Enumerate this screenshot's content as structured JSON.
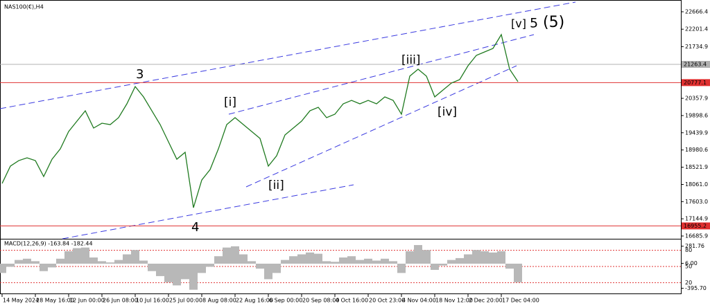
{
  "chart_data": {
    "type": "line",
    "title": "NAS100(€),H4",
    "categories": [
      "14 May 2024",
      null,
      null,
      null,
      "28 May 16:00",
      null,
      null,
      null,
      "12 Jun 00:00",
      null,
      null,
      null,
      "26 Jun 08:00",
      null,
      null,
      null,
      "10 Jul 16:00",
      null,
      null,
      null,
      "25 Jul 00:00",
      null,
      null,
      null,
      "8 Aug 08:00",
      null,
      null,
      null,
      "22 Aug 16:00",
      null,
      null,
      null,
      "6 Sep 00:00",
      null,
      null,
      null,
      "20 Sep 08:00",
      null,
      null,
      null,
      "4 Oct 16:00",
      null,
      null,
      null,
      "20 Oct 23:00",
      null,
      null,
      null,
      "4 Nov 04:00",
      null,
      null,
      null,
      "18 Nov 12:00",
      null,
      null,
      null,
      "2 Dec 20:00",
      null,
      null,
      null,
      "17 Dec 04:00",
      null,
      null
    ],
    "series": [
      {
        "name": "NAS100",
        "color": "#1f7a1f",
        "values": [
          18088,
          18550,
          18697,
          18771,
          18697,
          18273,
          18734,
          19011,
          19473,
          19750,
          20026,
          19565,
          19694,
          19657,
          19842,
          20211,
          20672,
          20396,
          20026,
          19657,
          19196,
          18734,
          18919,
          17442,
          18180,
          18457,
          19011,
          19657,
          19842,
          19657,
          19473,
          19288,
          18550,
          18827,
          19380,
          19565,
          19750,
          20026,
          20119,
          19842,
          19934,
          20211,
          20303,
          20211,
          20303,
          20211,
          20396,
          20303,
          19934,
          20949,
          21134,
          20949,
          20396,
          20580,
          20765,
          20857,
          21226,
          21503,
          21596,
          21688,
          22057,
          21134,
          20802
        ]
      }
    ],
    "ylim": [
      16612,
      22980
    ],
    "yticks": [
      22666.4,
      22201.4,
      21734.9,
      20357.9,
      19898.6,
      19439.9,
      18980.6,
      18521.9,
      {
        "value": 18061,
        "label": "18061.0"
      },
      {
        "value": 17603,
        "label": "17603.0"
      },
      17144.9,
      16685.9
    ],
    "price_levels": [
      {
        "value": 21263.4,
        "color": "#b0b0b0"
      },
      {
        "value": 20777.1,
        "color": "#e03030"
      },
      {
        "value": 16955.2,
        "color": "#e03030"
      }
    ],
    "annotations": [
      {
        "text": "3",
        "color": "#1c1cc8"
      },
      {
        "text": "4",
        "color": "#1c1cc8"
      },
      {
        "text": "[i]",
        "color": "#2e8b2e"
      },
      {
        "text": "[ii]",
        "color": "#2e8b2e"
      },
      {
        "text": "[iii]",
        "color": "#2e8b2e"
      },
      {
        "text": "[iv]",
        "color": "#2e8b2e"
      },
      {
        "text": "[v]",
        "color": "#2e8b2e"
      },
      {
        "text": "5",
        "color": "#1c1cc8"
      },
      {
        "text": "(5)",
        "color": "#e02020"
      }
    ],
    "macd": {
      "label": "MACD(12,26,9) -163.84 -182.44",
      "color": "#b8b8b8",
      "values": [
        -150,
        -50,
        60,
        80,
        40,
        -120,
        -60,
        80,
        200,
        250,
        260,
        100,
        40,
        20,
        60,
        150,
        220,
        50,
        -120,
        -200,
        -300,
        -350,
        -250,
        -420,
        -150,
        -50,
        120,
        260,
        280,
        150,
        40,
        -80,
        -250,
        -150,
        60,
        120,
        150,
        180,
        160,
        40,
        30,
        100,
        120,
        60,
        80,
        50,
        80,
        40,
        -150,
        200,
        300,
        220,
        -100,
        -30,
        60,
        90,
        150,
        220,
        200,
        180,
        200,
        -80,
        -300
      ],
      "ylim": [
        -480,
        390
      ],
      "yticks": [
        281.76,
        {
          "value": 6,
          "label": "6.00"
        },
        {
          "value": -395.7,
          "label": "-395.70"
        }
      ],
      "levels_lim": [
        0,
        100
      ],
      "levels": [
        80,
        50,
        20
      ]
    }
  }
}
